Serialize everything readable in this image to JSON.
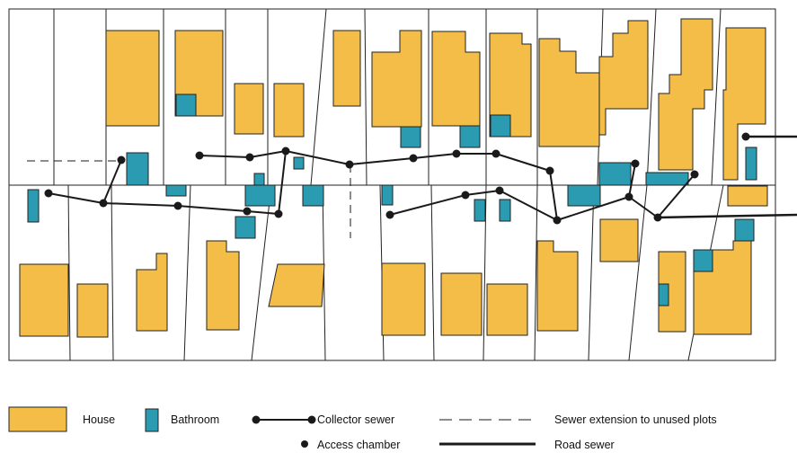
{
  "legend": {
    "house": "House",
    "bathroom": "Bathroom",
    "collector_sewer": "Collector sewer",
    "access_chamber": "Access chamber",
    "sewer_extension": "Sewer extension to unused plots",
    "road_sewer": "Road sewer"
  },
  "colors": {
    "house": "#f3bd48",
    "bathroom": "#2a9bb1",
    "line": "#1a1a1a",
    "plot_border": "#222222"
  }
}
